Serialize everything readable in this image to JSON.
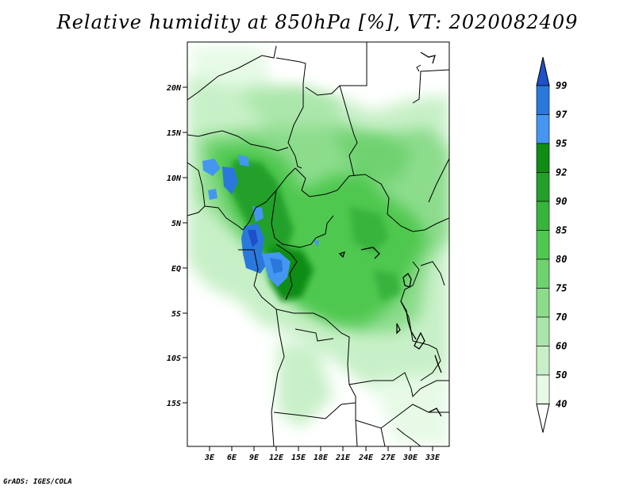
{
  "title": "Relative humidity at 850hPa [%], VT: 2020082409",
  "credit": "GrADS: IGES/COLA",
  "map": {
    "lat_labels": [
      "20N",
      "15N",
      "10N",
      "5N",
      "EQ",
      "5S",
      "10S",
      "15S"
    ],
    "lon_labels": [
      "3E",
      "6E",
      "9E",
      "12E",
      "15E",
      "18E",
      "21E",
      "24E",
      "27E",
      "30E",
      "33E"
    ]
  },
  "colorbar": {
    "levels": [
      "99",
      "97",
      "95",
      "92",
      "90",
      "85",
      "80",
      "75",
      "70",
      "60",
      "50",
      "40"
    ],
    "colors": [
      "#1e50c8",
      "#2a78dc",
      "#4496f0",
      "#0f8c14",
      "#23a02a",
      "#37b43c",
      "#50c850",
      "#6ed26e",
      "#8cdc8c",
      "#aae6aa",
      "#c8f0c8",
      "#e6fae6"
    ]
  }
}
